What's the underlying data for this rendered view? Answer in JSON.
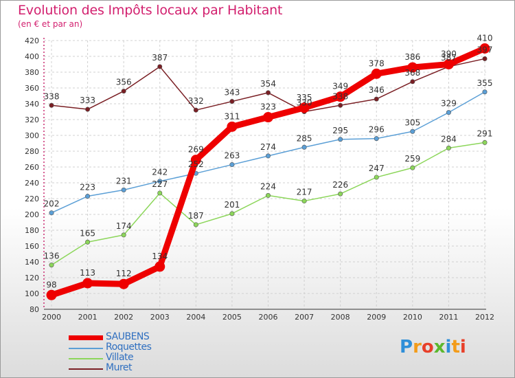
{
  "chart_data": {
    "type": "line",
    "title": "Evolution des Impôts locaux par Habitant",
    "subtitle": "(en € et par an)",
    "x": [
      "2000",
      "2001",
      "2002",
      "2003",
      "2004",
      "2005",
      "2006",
      "2007",
      "2008",
      "2009",
      "2010",
      "2011",
      "2012"
    ],
    "ylim": [
      80,
      420
    ],
    "yticks": [
      "80",
      "100",
      "120",
      "140",
      "160",
      "180",
      "200",
      "220",
      "240",
      "260",
      "280",
      "300",
      "320",
      "340",
      "360",
      "380",
      "400",
      "420"
    ],
    "grid": true,
    "series": [
      {
        "name": "SAUBENS",
        "color": "#ee0000",
        "values": [
          98,
          113,
          112,
          134,
          269,
          311,
          323,
          335,
          349,
          378,
          386,
          390,
          410
        ],
        "labels": [
          "98",
          "113",
          "112",
          "134",
          "269",
          "311",
          "323",
          "335",
          "349",
          "378",
          "386",
          "390",
          "410"
        ]
      },
      {
        "name": "Roquettes",
        "color": "#5b9fd6",
        "values": [
          202,
          223,
          231,
          242,
          252,
          263,
          274,
          285,
          295,
          296,
          305,
          329,
          355
        ],
        "labels": [
          "202",
          "223",
          "231",
          "242",
          "252",
          "263",
          "274",
          "285",
          "295",
          "296",
          "305",
          "329",
          "355"
        ]
      },
      {
        "name": "Villate",
        "color": "#8cd65a",
        "values": [
          136,
          165,
          174,
          227,
          187,
          201,
          224,
          217,
          226,
          247,
          259,
          284,
          291
        ],
        "labels": [
          "136",
          "165",
          "174",
          "227",
          "187",
          "201",
          "224",
          "217",
          "226",
          "247",
          "259",
          "284",
          "291"
        ]
      },
      {
        "name": "Muret",
        "color": "#7a1f24",
        "values": [
          338,
          333,
          356,
          387,
          332,
          343,
          354,
          330,
          338,
          346,
          368,
          387,
          397
        ],
        "labels": [
          "338",
          "333",
          "356",
          "387",
          "332",
          "343",
          "354",
          "330",
          "338",
          "346",
          "368",
          "387",
          "397"
        ]
      }
    ],
    "legend_position": "bottom-left"
  },
  "logo": {
    "letters": [
      "P",
      "r",
      "o",
      "x",
      "i",
      "t",
      "i"
    ],
    "colors": [
      "#2f8fd8",
      "#f39c1a",
      "#e8402a",
      "#5cb82e",
      "#2f8fd8",
      "#f39c1a",
      "#e8402a"
    ]
  }
}
